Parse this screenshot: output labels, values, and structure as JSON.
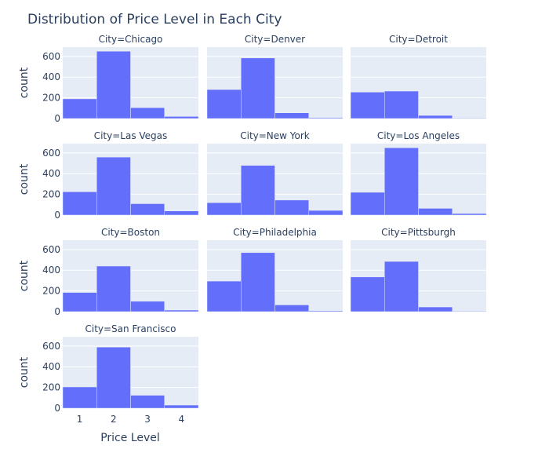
{
  "chart_data": {
    "type": "bar",
    "title": "Distribution of Price Level in Each City",
    "xlabel": "Price Level",
    "ylabel": "count",
    "bins": [
      1,
      2,
      3,
      4
    ],
    "x_ticks": [
      "1",
      "2",
      "3",
      "4"
    ],
    "y_ticks": [
      "0",
      "200",
      "400",
      "600"
    ],
    "ylim": [
      0,
      690
    ],
    "bar_color": "#636efa",
    "plot_bg": "#e5ecf6",
    "grid": true,
    "facets": [
      {
        "label": "City=Chicago",
        "values": [
          190,
          650,
          105,
          20
        ]
      },
      {
        "label": "City=Denver",
        "values": [
          280,
          585,
          55,
          8
        ]
      },
      {
        "label": "City=Detroit",
        "values": [
          255,
          265,
          30,
          5
        ]
      },
      {
        "label": "City=Las Vegas",
        "values": [
          225,
          560,
          110,
          40
        ]
      },
      {
        "label": "City=New York",
        "values": [
          120,
          480,
          145,
          45
        ]
      },
      {
        "label": "City=Los Angeles",
        "values": [
          220,
          650,
          65,
          15
        ]
      },
      {
        "label": "City=Boston",
        "values": [
          185,
          440,
          100,
          15
        ]
      },
      {
        "label": "City=Philadelphia",
        "values": [
          295,
          570,
          65,
          8
        ]
      },
      {
        "label": "City=Pittsburgh",
        "values": [
          335,
          485,
          45,
          5
        ]
      },
      {
        "label": "City=San Francisco",
        "values": [
          205,
          590,
          125,
          30
        ]
      }
    ]
  }
}
